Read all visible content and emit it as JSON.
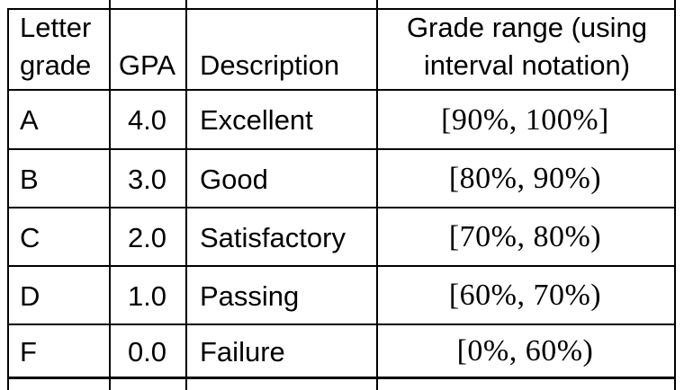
{
  "colors": {
    "border": "#000000",
    "background": "#ffffff",
    "text": "#000000"
  },
  "table": {
    "header": {
      "letter_grade": "Letter grade",
      "gpa": "GPA",
      "description": "Description",
      "grade_range": "Grade range (using interval notation)"
    },
    "rows": [
      {
        "letter": "A",
        "gpa": "4.0",
        "description": "Excellent",
        "range": "[90%, 100%]"
      },
      {
        "letter": "B",
        "gpa": "3.0",
        "description": "Good",
        "range": "[80%, 90%)"
      },
      {
        "letter": "C",
        "gpa": "2.0",
        "description": "Satisfactory",
        "range": "[70%, 80%)"
      },
      {
        "letter": "D",
        "gpa": "1.0",
        "description": "Passing",
        "range": "[60%, 70%)"
      },
      {
        "letter": "F",
        "gpa": "0.0",
        "description": "Failure",
        "range": "[0%, 60%)"
      }
    ]
  },
  "chart_data": {
    "type": "table",
    "columns": [
      "Letter grade",
      "GPA",
      "Description",
      "Grade range (using interval notation)"
    ],
    "rows": [
      [
        "A",
        "4.0",
        "Excellent",
        "[90%, 100%]"
      ],
      [
        "B",
        "3.0",
        "Good",
        "[80%, 90%)"
      ],
      [
        "C",
        "2.0",
        "Satisfactory",
        "[70%, 80%)"
      ],
      [
        "D",
        "1.0",
        "Passing",
        "[60%, 70%)"
      ],
      [
        "F",
        "0.0",
        "Failure",
        "[0%, 60%)"
      ]
    ]
  }
}
